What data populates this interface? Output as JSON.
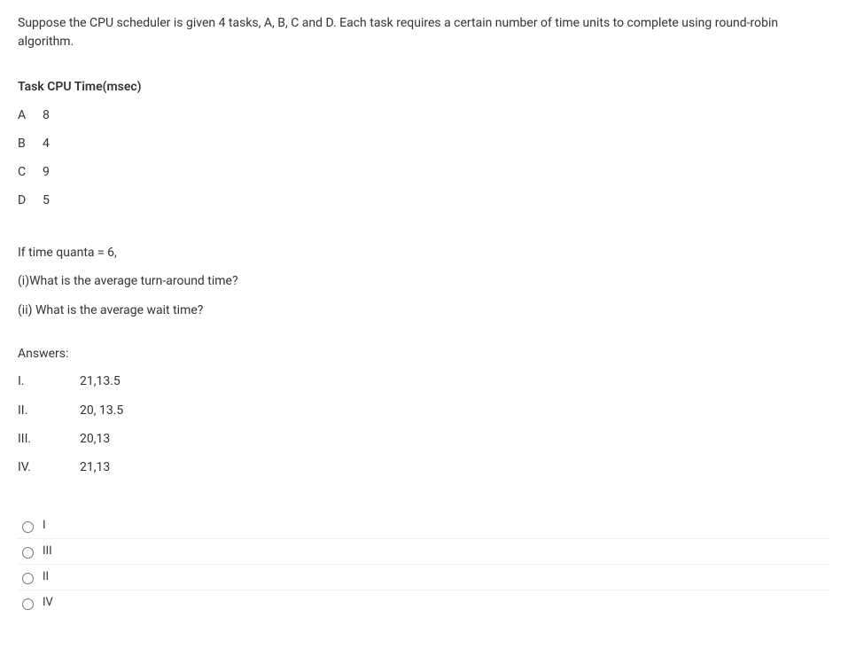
{
  "question": {
    "intro": "Suppose the CPU scheduler is given 4 tasks, A, B, C and D. Each task requires a certain number of time units to complete using round-robin algorithm.",
    "table_header": "Task CPU Time(msec)",
    "tasks": [
      {
        "name": "A",
        "time": "8"
      },
      {
        "name": "B",
        "time": "4"
      },
      {
        "name": "C",
        "time": "9"
      },
      {
        "name": "D",
        "time": "5"
      }
    ],
    "quanta_line": "If time quanta = 6,",
    "sub_i": "(i)What is the average turn-around time?",
    "sub_ii": "(ii) What is the average wait time?",
    "answers_label": "Answers:",
    "answers": [
      {
        "num": "I.",
        "val": " 21,13.5"
      },
      {
        "num": "II.",
        "val": " 20, 13.5"
      },
      {
        "num": "III.",
        "val": "20,13"
      },
      {
        "num": "IV.",
        "val": "21,13"
      }
    ]
  },
  "options": [
    {
      "label": "I"
    },
    {
      "label": "III"
    },
    {
      "label": "II"
    },
    {
      "label": "IV"
    }
  ]
}
